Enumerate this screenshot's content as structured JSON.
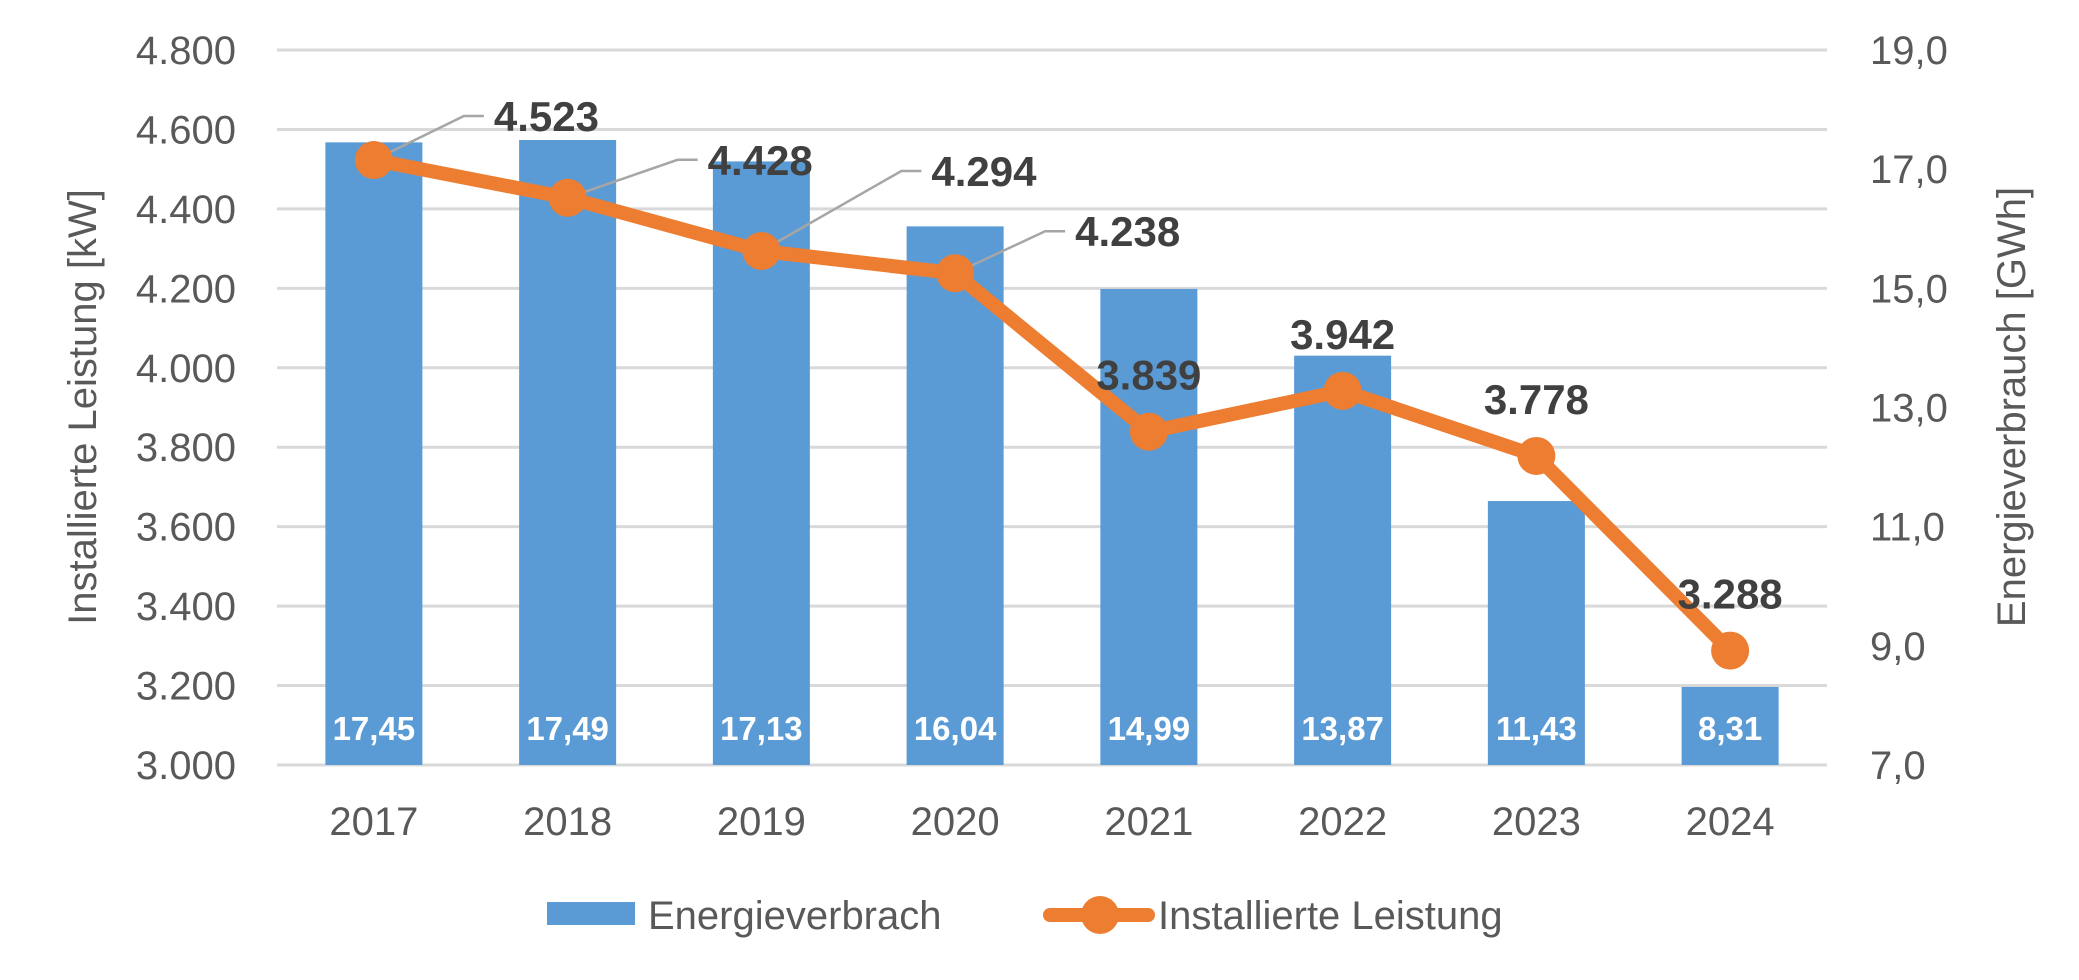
{
  "chart_data": {
    "type": "bar",
    "title": "",
    "categories": [
      "2017",
      "2018",
      "2019",
      "2020",
      "2021",
      "2022",
      "2023",
      "2024"
    ],
    "series": [
      {
        "name": "Energieverbrach",
        "type": "bar",
        "axis": "right",
        "color": "#5b9bd5",
        "values": [
          17.45,
          17.49,
          17.13,
          16.04,
          14.99,
          13.87,
          11.43,
          8.31
        ],
        "labels": [
          "17,45",
          "17,49",
          "17,13",
          "16,04",
          "14,99",
          "13,87",
          "11,43",
          "8,31"
        ]
      },
      {
        "name": "Installierte Leistung",
        "type": "line",
        "axis": "left",
        "color": "#ed7d31",
        "values": [
          4523,
          4428,
          4294,
          4238,
          3839,
          3942,
          3778,
          3288
        ],
        "labels": [
          "4.523",
          "4.428",
          "4.294",
          "4.238",
          "3.839",
          "3.942",
          "3.778",
          "3.288"
        ]
      }
    ],
    "left_axis": {
      "label": "Installierte Leistung [kW]",
      "ylim": [
        3000,
        4800
      ],
      "ticks": [
        "3.000",
        "3.200",
        "3.400",
        "3.600",
        "3.800",
        "4.000",
        "4.200",
        "4.400",
        "4.600",
        "4.800"
      ]
    },
    "right_axis": {
      "label": "Energieverbrauch [GWh]",
      "ylim": [
        7.0,
        19.0
      ],
      "ticks": [
        "7,0",
        "9,0",
        "11,0",
        "13,0",
        "15,0",
        "17,0",
        "19,0"
      ]
    },
    "xlabel": "",
    "grid": true,
    "legend": {
      "position": "bottom",
      "entries": [
        "Energieverbrach",
        "Installierte Leistung"
      ]
    }
  }
}
